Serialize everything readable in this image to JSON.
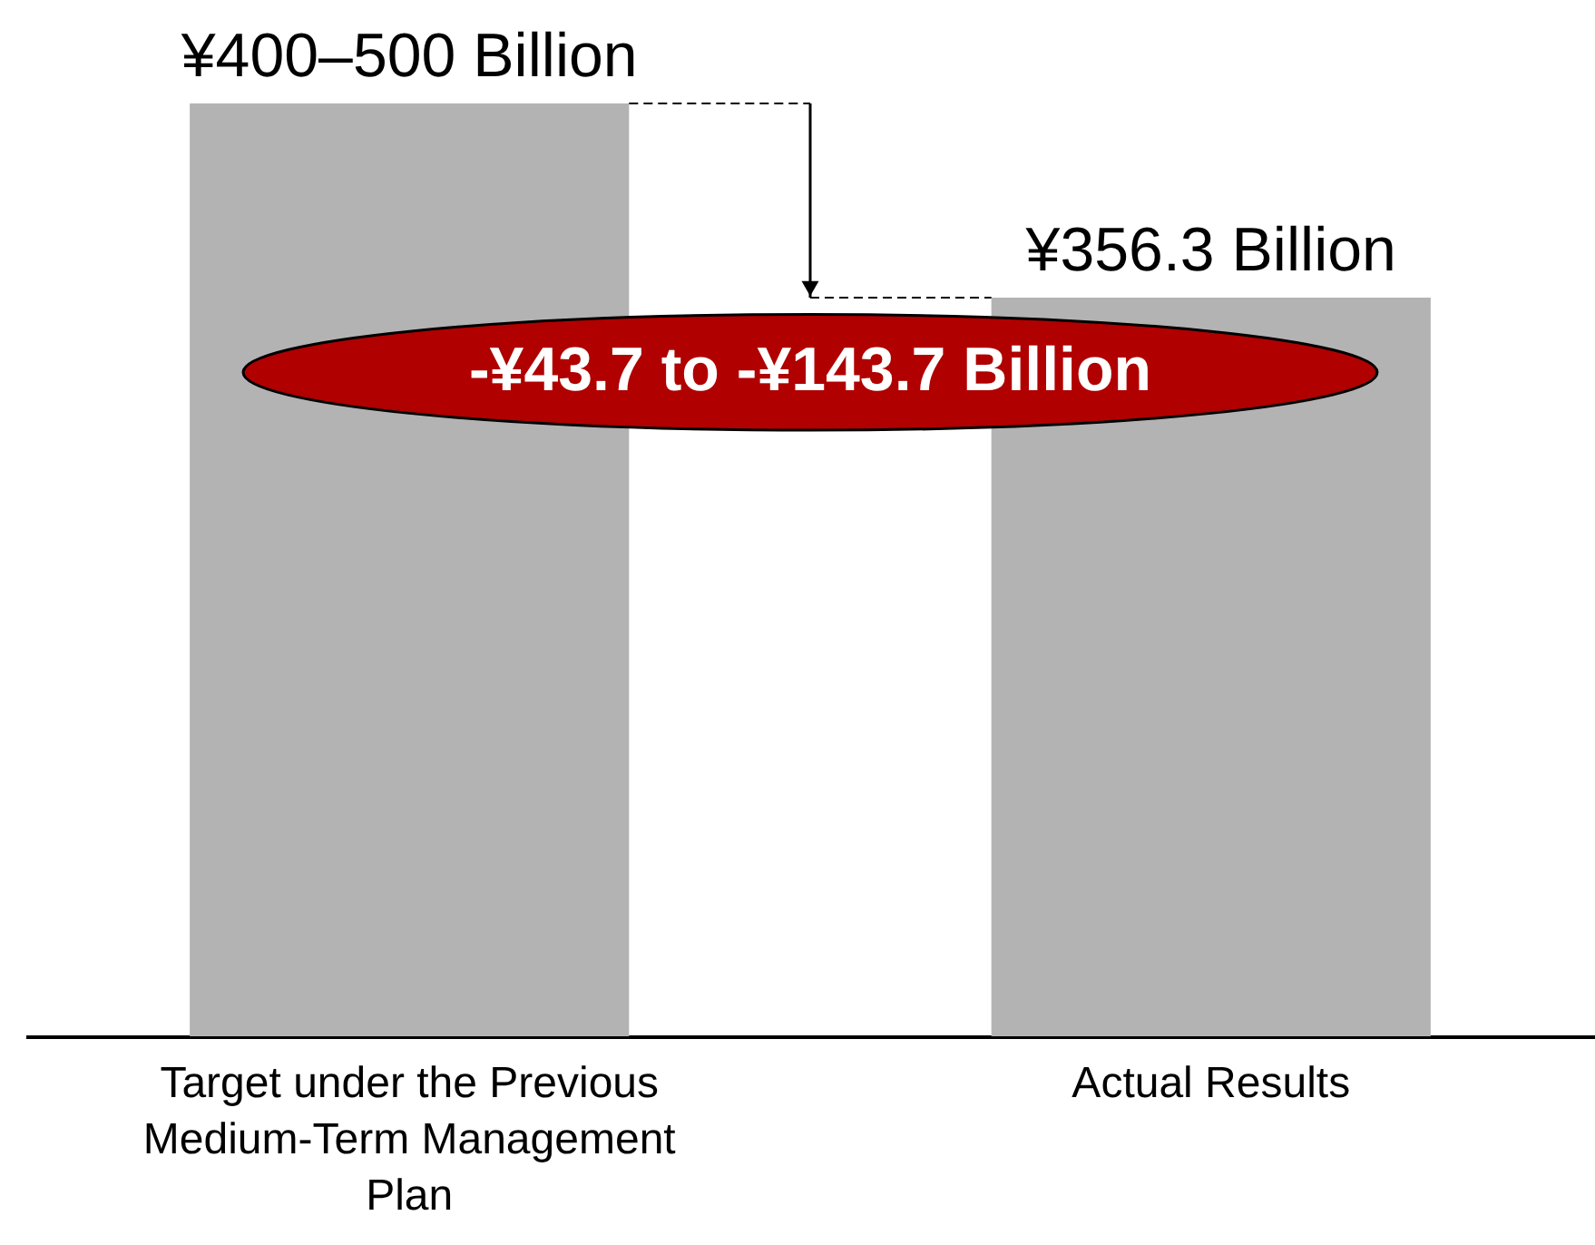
{
  "chart_data": {
    "type": "bar",
    "tick_labels": "x",
    "categories": [
      "Target under the Previous Medium-Term Management Plan",
      "Actual Results"
    ],
    "values": [
      450,
      356.3
    ],
    "color": "#b3b3b3",
    "value_labels": [
      "¥400–500 Billion",
      "¥356.3 Billion"
    ],
    "annotations": [
      "-¥43.7 to -¥143.7 Billion"
    ],
    "grid": false
  }
}
